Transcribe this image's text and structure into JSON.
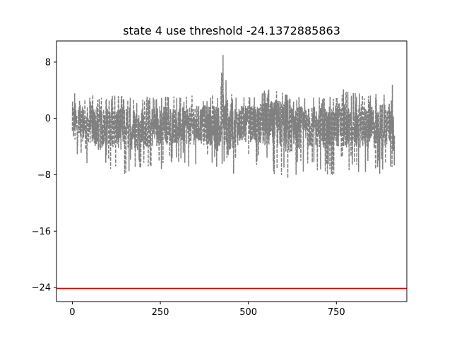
{
  "chart_data": {
    "type": "line",
    "title": "state 4 use threshold -24.1372885863",
    "xlabel": "",
    "ylabel": "",
    "xlim": [
      -45,
      950
    ],
    "ylim": [
      -26,
      11
    ],
    "xticks": [
      0,
      250,
      500,
      750
    ],
    "xtick_labels": [
      "0",
      "250",
      "500",
      "750"
    ],
    "yticks": [
      8,
      0,
      -8,
      -16,
      -24
    ],
    "ytick_labels": [
      "8",
      "0",
      "−8",
      "−16",
      "−24"
    ],
    "grid": false,
    "legend": "none",
    "series": [
      {
        "style": "dashed",
        "color": "#808080",
        "x_range": [
          0,
          915
        ],
        "envelope_x": [
          0,
          10,
          30,
          60,
          75,
          100,
          150,
          200,
          240,
          300,
          350,
          400,
          420,
          428,
          435,
          445,
          470,
          500,
          550,
          600,
          610,
          640,
          700,
          730,
          760,
          800,
          850,
          900,
          912
        ],
        "envelope_upper": [
          4.5,
          4.2,
          3.0,
          3.5,
          3.0,
          3.5,
          3.2,
          3.0,
          3.6,
          3.2,
          3.5,
          3.4,
          4.5,
          9.5,
          7.0,
          4.0,
          3.5,
          3.2,
          4.2,
          5.2,
          3.5,
          3.3,
          3.0,
          3.2,
          4.5,
          4.0,
          3.2,
          4.5,
          5.5
        ],
        "envelope_lower": [
          -6.5,
          -7.5,
          -6.0,
          -7.0,
          -8.8,
          -7.0,
          -8.5,
          -8.0,
          -7.5,
          -6.5,
          -7.0,
          -7.0,
          -10.0,
          -13.0,
          -11.0,
          -9.5,
          -7.0,
          -6.0,
          -7.5,
          -8.5,
          -9.3,
          -8.0,
          -7.5,
          -8.5,
          -7.5,
          -7.5,
          -8.0,
          -8.0,
          -9.5
        ]
      }
    ],
    "threshold": {
      "value": -24.1372885863,
      "color": "#e00000"
    }
  }
}
